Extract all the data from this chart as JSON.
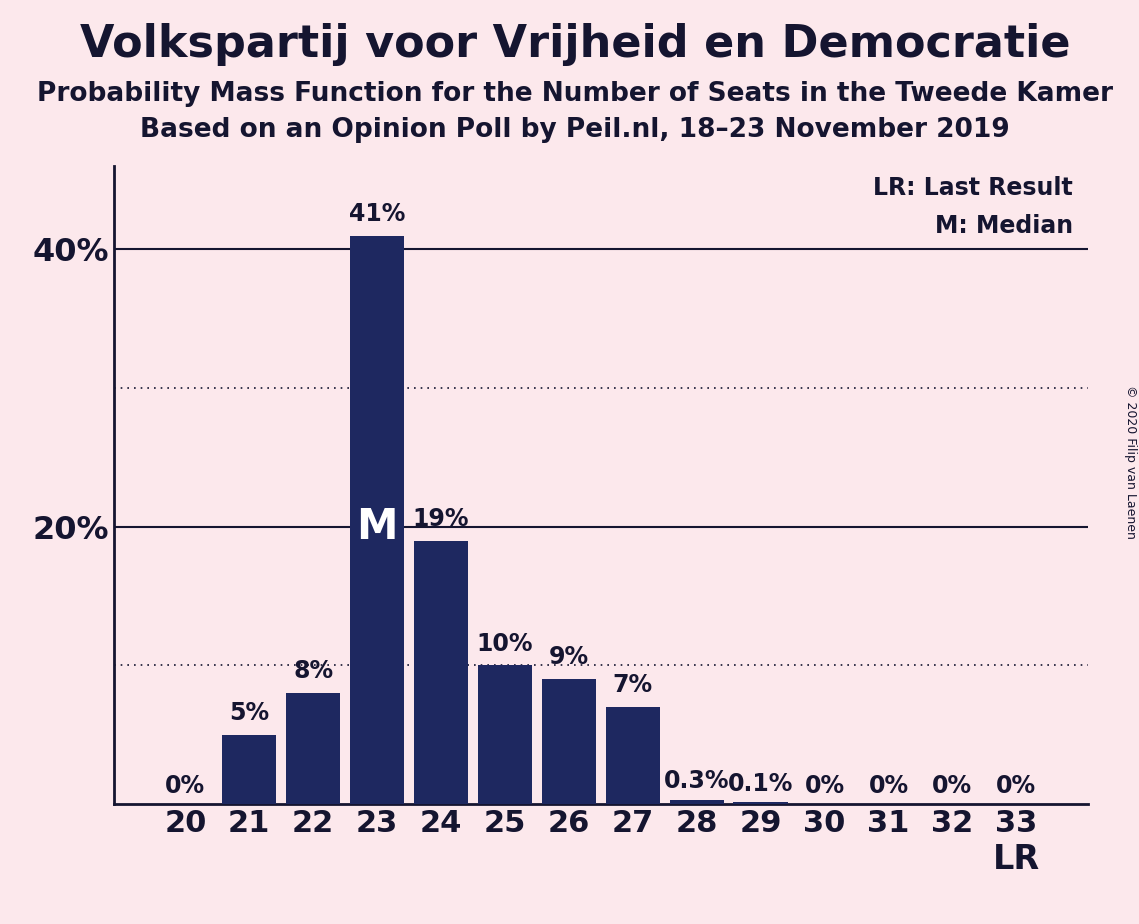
{
  "title": "Volkspartij voor Vrijheid en Democratie",
  "subtitle1": "Probability Mass Function for the Number of Seats in the Tweede Kamer",
  "subtitle2": "Based on an Opinion Poll by Peil.nl, 18–23 November 2019",
  "copyright": "© 2020 Filip van Laenen",
  "categories": [
    20,
    21,
    22,
    23,
    24,
    25,
    26,
    27,
    28,
    29,
    30,
    31,
    32,
    33
  ],
  "values": [
    0.0,
    5.0,
    8.0,
    41.0,
    19.0,
    10.0,
    9.0,
    7.0,
    0.3,
    0.1,
    0.0,
    0.0,
    0.0,
    0.0
  ],
  "bar_color": "#1e2860",
  "background_color": "#fce8ec",
  "label_color": "#151530",
  "bar_labels": [
    "0%",
    "5%",
    "8%",
    "41%",
    "19%",
    "10%",
    "9%",
    "7%",
    "0.3%",
    "0.1%",
    "0%",
    "0%",
    "0%",
    "0%"
  ],
  "median_seat": 23,
  "lr_seat": 33,
  "ylim": [
    0,
    46
  ],
  "dotted_lines": [
    10,
    30
  ],
  "solid_lines": [
    20,
    40
  ],
  "legend_lr": "LR: Last Result",
  "legend_m": "M: Median",
  "title_fontsize": 32,
  "subtitle_fontsize": 19,
  "bar_label_fontsize": 17,
  "axis_fontsize": 22
}
